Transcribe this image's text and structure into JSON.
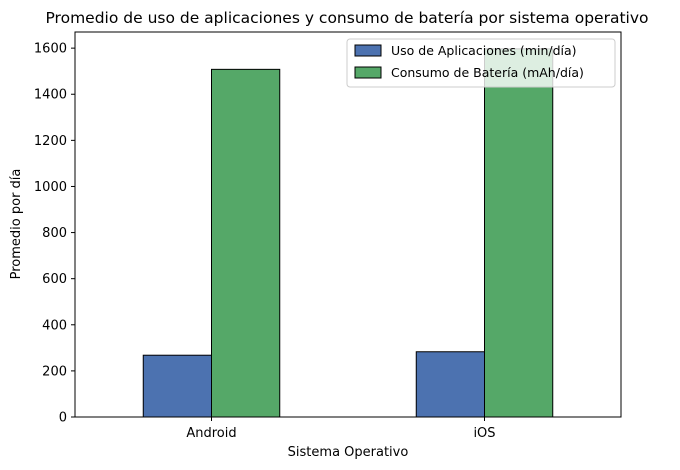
{
  "chart_data": {
    "type": "bar",
    "title": "Promedio de uso de aplicaciones y consumo de batería por sistema operativo",
    "xlabel": "Sistema Operativo",
    "ylabel": "Promedio por día",
    "categories": [
      "Android",
      "iOS"
    ],
    "series": [
      {
        "name": "Uso de Aplicaciones (min/día)",
        "values": [
          268,
          283
        ],
        "color": "#4c72b0"
      },
      {
        "name": "Consumo de Batería (mAh/día)",
        "values": [
          1508,
          1597
        ],
        "color": "#55a868"
      }
    ],
    "ylim": [
      0,
      1670
    ],
    "yticks": [
      0,
      200,
      400,
      600,
      800,
      1000,
      1200,
      1400,
      1600
    ],
    "grid": false,
    "legend_position": "top-right"
  }
}
